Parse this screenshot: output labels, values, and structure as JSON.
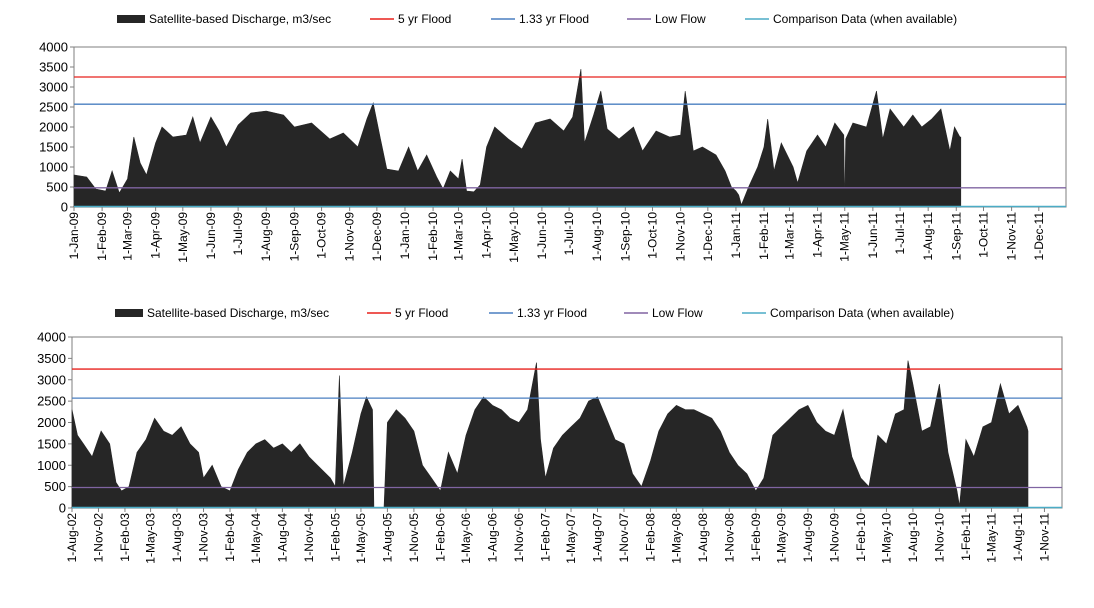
{
  "colors": {
    "discharge": "#262626",
    "flood5": "#e8201c",
    "flood133": "#4a7fc1",
    "lowflow": "#8064a2",
    "comparison": "#4bacc6"
  },
  "legend": {
    "discharge": "Satellite-based Discharge, m3/sec",
    "flood5": "5 yr Flood",
    "flood133": "1.33 yr Flood",
    "lowflow": "Low Flow",
    "comparison": "Comparison Data (when available)"
  },
  "chart_data": [
    {
      "type": "area",
      "title": "",
      "xlabel": "",
      "ylabel": "",
      "ylim": [
        0,
        4000
      ],
      "yticks": [
        "0",
        "500",
        "1000",
        "1500",
        "2000",
        "2500",
        "3000",
        "3500",
        "4000"
      ],
      "xrange": [
        "2009-01-01",
        "2011-12-31"
      ],
      "xticks": [
        "1-Jan-09",
        "1-Feb-09",
        "1-Mar-09",
        "1-Apr-09",
        "1-May-09",
        "1-Jun-09",
        "1-Jul-09",
        "1-Aug-09",
        "1-Sep-09",
        "1-Oct-09",
        "1-Nov-09",
        "1-Dec-09",
        "1-Jan-10",
        "1-Feb-10",
        "1-Mar-10",
        "1-Apr-10",
        "1-May-10",
        "1-Jun-10",
        "1-Jul-10",
        "1-Aug-10",
        "1-Sep-10",
        "1-Oct-10",
        "1-Nov-10",
        "1-Dec-10",
        "1-Jan-11",
        "1-Feb-11",
        "1-Mar-11",
        "1-Apr-11",
        "1-May-11",
        "1-Jun-11",
        "1-Jul-11",
        "1-Aug-11",
        "1-Sep-11",
        "1-Oct-11",
        "1-Nov-11",
        "1-Dec-11"
      ],
      "thresholds": {
        "flood5": 3250,
        "flood133": 2570,
        "lowflow": 480,
        "comparison": 0
      },
      "series": [
        {
          "name": "Satellite-based Discharge, m3/sec",
          "points": [
            [
              "2009-01-01",
              800
            ],
            [
              "2009-01-15",
              750
            ],
            [
              "2009-01-25",
              450
            ],
            [
              "2009-02-05",
              400
            ],
            [
              "2009-02-12",
              900
            ],
            [
              "2009-02-20",
              350
            ],
            [
              "2009-03-01",
              700
            ],
            [
              "2009-03-08",
              1750
            ],
            [
              "2009-03-15",
              1100
            ],
            [
              "2009-03-22",
              800
            ],
            [
              "2009-04-01",
              1600
            ],
            [
              "2009-04-08",
              2000
            ],
            [
              "2009-04-20",
              1750
            ],
            [
              "2009-05-05",
              1800
            ],
            [
              "2009-05-12",
              2250
            ],
            [
              "2009-05-20",
              1600
            ],
            [
              "2009-06-01",
              2250
            ],
            [
              "2009-06-10",
              1900
            ],
            [
              "2009-06-18",
              1500
            ],
            [
              "2009-07-01",
              2050
            ],
            [
              "2009-07-15",
              2350
            ],
            [
              "2009-08-01",
              2400
            ],
            [
              "2009-08-20",
              2300
            ],
            [
              "2009-09-01",
              2000
            ],
            [
              "2009-09-20",
              2100
            ],
            [
              "2009-10-10",
              1700
            ],
            [
              "2009-10-25",
              1850
            ],
            [
              "2009-11-10",
              1500
            ],
            [
              "2009-11-20",
              2200
            ],
            [
              "2009-11-27",
              2600
            ],
            [
              "2009-12-05",
              1700
            ],
            [
              "2009-12-12",
              950
            ],
            [
              "2009-12-25",
              900
            ],
            [
              "2010-01-05",
              1500
            ],
            [
              "2010-01-15",
              900
            ],
            [
              "2010-01-25",
              1300
            ],
            [
              "2010-02-05",
              750
            ],
            [
              "2010-02-12",
              450
            ],
            [
              "2010-02-20",
              900
            ],
            [
              "2010-03-01",
              700
            ],
            [
              "2010-03-05",
              1200
            ],
            [
              "2010-03-10",
              400
            ],
            [
              "2010-03-18",
              380
            ],
            [
              "2010-03-25",
              550
            ],
            [
              "2010-04-01",
              1500
            ],
            [
              "2010-04-10",
              2000
            ],
            [
              "2010-04-25",
              1700
            ],
            [
              "2010-05-10",
              1450
            ],
            [
              "2010-05-25",
              2100
            ],
            [
              "2010-06-10",
              2200
            ],
            [
              "2010-06-25",
              1900
            ],
            [
              "2010-07-05",
              2250
            ],
            [
              "2010-07-14",
              3450
            ],
            [
              "2010-07-18",
              1600
            ],
            [
              "2010-07-28",
              2300
            ],
            [
              "2010-08-05",
              2900
            ],
            [
              "2010-08-12",
              1950
            ],
            [
              "2010-08-25",
              1700
            ],
            [
              "2010-09-10",
              2000
            ],
            [
              "2010-09-20",
              1400
            ],
            [
              "2010-10-05",
              1900
            ],
            [
              "2010-10-20",
              1750
            ],
            [
              "2010-11-01",
              1800
            ],
            [
              "2010-11-06",
              2900
            ],
            [
              "2010-11-15",
              1400
            ],
            [
              "2010-11-25",
              1500
            ],
            [
              "2010-12-10",
              1300
            ],
            [
              "2010-12-20",
              900
            ],
            [
              "2010-12-27",
              500
            ],
            [
              "2011-01-01",
              400
            ],
            [
              "2011-01-04",
              300
            ],
            [
              "2011-01-07",
              50
            ],
            [
              "2011-01-15",
              500
            ],
            [
              "2011-01-25",
              1000
            ],
            [
              "2011-02-01",
              1500
            ],
            [
              "2011-02-05",
              2200
            ],
            [
              "2011-02-12",
              900
            ],
            [
              "2011-02-20",
              1600
            ],
            [
              "2011-03-05",
              1000
            ],
            [
              "2011-03-10",
              600
            ],
            [
              "2011-03-20",
              1400
            ],
            [
              "2011-04-01",
              1800
            ],
            [
              "2011-04-10",
              1500
            ],
            [
              "2011-04-20",
              2100
            ],
            [
              "2011-04-30",
              1800
            ],
            [
              "2011-05-01",
              50
            ],
            [
              "2011-05-02",
              1700
            ],
            [
              "2011-05-10",
              2100
            ],
            [
              "2011-05-25",
              2000
            ],
            [
              "2011-06-05",
              2900
            ],
            [
              "2011-06-12",
              1700
            ],
            [
              "2011-06-20",
              2450
            ],
            [
              "2011-07-05",
              2000
            ],
            [
              "2011-07-15",
              2300
            ],
            [
              "2011-07-25",
              2000
            ],
            [
              "2011-08-05",
              2200
            ],
            [
              "2011-08-15",
              2450
            ],
            [
              "2011-08-25",
              1400
            ],
            [
              "2011-08-30",
              2000
            ],
            [
              "2011-09-05",
              1750
            ],
            [
              "2011-09-06",
              1750
            ]
          ]
        }
      ]
    },
    {
      "type": "area",
      "title": "",
      "xlabel": "",
      "ylabel": "",
      "ylim": [
        0,
        4000
      ],
      "yticks": [
        "0",
        "500",
        "1000",
        "1500",
        "2000",
        "2500",
        "3000",
        "3500",
        "4000"
      ],
      "xrange": [
        "2002-08-01",
        "2012-01-01"
      ],
      "xticks": [
        "1-Aug-02",
        "1-Nov-02",
        "1-Feb-03",
        "1-May-03",
        "1-Aug-03",
        "1-Nov-03",
        "1-Feb-04",
        "1-May-04",
        "1-Aug-04",
        "1-Nov-04",
        "1-Feb-05",
        "1-May-05",
        "1-Aug-05",
        "1-Nov-05",
        "1-Feb-06",
        "1-May-06",
        "1-Aug-06",
        "1-Nov-06",
        "1-Feb-07",
        "1-May-07",
        "1-Aug-07",
        "1-Nov-07",
        "1-Feb-08",
        "1-May-08",
        "1-Aug-08",
        "1-Nov-08",
        "1-Feb-09",
        "1-May-09",
        "1-Aug-09",
        "1-Nov-09",
        "1-Feb-10",
        "1-May-10",
        "1-Aug-10",
        "1-Nov-10",
        "1-Feb-11",
        "1-May-11",
        "1-Aug-11",
        "1-Nov-11"
      ],
      "thresholds": {
        "flood5": 3250,
        "flood133": 2570,
        "lowflow": 480,
        "comparison": 0
      },
      "series": [
        {
          "name": "Satellite-based Discharge, m3/sec",
          "points": [
            [
              "2002-08-01",
              2300
            ],
            [
              "2002-08-20",
              1700
            ],
            [
              "2002-09-10",
              1500
            ],
            [
              "2002-10-10",
              1200
            ],
            [
              "2002-11-10",
              1800
            ],
            [
              "2002-12-10",
              1500
            ],
            [
              "2003-01-01",
              600
            ],
            [
              "2003-01-20",
              400
            ],
            [
              "2003-02-15",
              500
            ],
            [
              "2003-03-15",
              1300
            ],
            [
              "2003-04-15",
              1600
            ],
            [
              "2003-05-15",
              2100
            ],
            [
              "2003-06-15",
              1800
            ],
            [
              "2003-07-15",
              1700
            ],
            [
              "2003-08-15",
              1900
            ],
            [
              "2003-09-15",
              1500
            ],
            [
              "2003-10-15",
              1300
            ],
            [
              "2003-11-01",
              700
            ],
            [
              "2003-12-01",
              1000
            ],
            [
              "2004-01-01",
              500
            ],
            [
              "2004-02-01",
              400
            ],
            [
              "2004-03-01",
              900
            ],
            [
              "2004-04-01",
              1300
            ],
            [
              "2004-05-01",
              1500
            ],
            [
              "2004-06-01",
              1600
            ],
            [
              "2004-07-01",
              1400
            ],
            [
              "2004-08-01",
              1500
            ],
            [
              "2004-09-01",
              1300
            ],
            [
              "2004-10-01",
              1500
            ],
            [
              "2004-11-01",
              1200
            ],
            [
              "2004-12-01",
              1000
            ],
            [
              "2005-01-15",
              700
            ],
            [
              "2005-02-01",
              500
            ],
            [
              "2005-02-15",
              3100
            ],
            [
              "2005-03-01",
              500
            ],
            [
              "2005-04-01",
              1300
            ],
            [
              "2005-05-01",
              2200
            ],
            [
              "2005-05-20",
              2600
            ],
            [
              "2005-06-10",
              2300
            ],
            [
              "2005-06-15",
              0
            ],
            [
              "2005-07-20",
              0
            ],
            [
              "2005-08-01",
              2000
            ],
            [
              "2005-09-01",
              2300
            ],
            [
              "2005-10-01",
              2100
            ],
            [
              "2005-11-01",
              1800
            ],
            [
              "2005-12-01",
              1000
            ],
            [
              "2006-01-01",
              700
            ],
            [
              "2006-02-01",
              400
            ],
            [
              "2006-03-01",
              1300
            ],
            [
              "2006-04-01",
              800
            ],
            [
              "2006-05-01",
              1700
            ],
            [
              "2006-06-01",
              2300
            ],
            [
              "2006-07-01",
              2600
            ],
            [
              "2006-08-01",
              2400
            ],
            [
              "2006-09-01",
              2300
            ],
            [
              "2006-10-01",
              2100
            ],
            [
              "2006-11-01",
              2000
            ],
            [
              "2006-12-01",
              2300
            ],
            [
              "2007-01-01",
              3400
            ],
            [
              "2007-01-15",
              1600
            ],
            [
              "2007-02-01",
              700
            ],
            [
              "2007-03-01",
              1400
            ],
            [
              "2007-04-01",
              1700
            ],
            [
              "2007-05-01",
              1900
            ],
            [
              "2007-06-01",
              2100
            ],
            [
              "2007-07-01",
              2500
            ],
            [
              "2007-08-01",
              2600
            ],
            [
              "2007-09-01",
              2100
            ],
            [
              "2007-10-01",
              1600
            ],
            [
              "2007-11-01",
              1500
            ],
            [
              "2007-12-01",
              800
            ],
            [
              "2008-01-01",
              500
            ],
            [
              "2008-02-01",
              1100
            ],
            [
              "2008-03-01",
              1800
            ],
            [
              "2008-04-01",
              2200
            ],
            [
              "2008-05-01",
              2400
            ],
            [
              "2008-06-01",
              2300
            ],
            [
              "2008-07-01",
              2300
            ],
            [
              "2008-08-01",
              2200
            ],
            [
              "2008-09-01",
              2100
            ],
            [
              "2008-10-01",
              1800
            ],
            [
              "2008-11-01",
              1300
            ],
            [
              "2008-12-01",
              1000
            ],
            [
              "2009-01-01",
              800
            ],
            [
              "2009-02-01",
              400
            ],
            [
              "2009-03-01",
              700
            ],
            [
              "2009-04-01",
              1700
            ],
            [
              "2009-05-01",
              1900
            ],
            [
              "2009-06-01",
              2100
            ],
            [
              "2009-07-01",
              2300
            ],
            [
              "2009-08-01",
              2400
            ],
            [
              "2009-09-01",
              2000
            ],
            [
              "2009-10-01",
              1800
            ],
            [
              "2009-11-01",
              1700
            ],
            [
              "2009-12-01",
              2300
            ],
            [
              "2010-01-01",
              1200
            ],
            [
              "2010-02-01",
              700
            ],
            [
              "2010-03-01",
              500
            ],
            [
              "2010-04-01",
              1700
            ],
            [
              "2010-05-01",
              1500
            ],
            [
              "2010-06-01",
              2200
            ],
            [
              "2010-07-01",
              2300
            ],
            [
              "2010-07-15",
              3450
            ],
            [
              "2010-08-01",
              2900
            ],
            [
              "2010-09-01",
              1800
            ],
            [
              "2010-10-01",
              1900
            ],
            [
              "2010-11-01",
              2900
            ],
            [
              "2010-12-01",
              1300
            ],
            [
              "2011-01-01",
              400
            ],
            [
              "2011-01-10",
              50
            ],
            [
              "2011-02-01",
              1600
            ],
            [
              "2011-03-01",
              1200
            ],
            [
              "2011-04-01",
              1900
            ],
            [
              "2011-05-01",
              2000
            ],
            [
              "2011-06-01",
              2900
            ],
            [
              "2011-07-01",
              2200
            ],
            [
              "2011-08-01",
              2400
            ],
            [
              "2011-09-01",
              1900
            ],
            [
              "2011-09-05",
              1800
            ]
          ]
        }
      ]
    }
  ]
}
